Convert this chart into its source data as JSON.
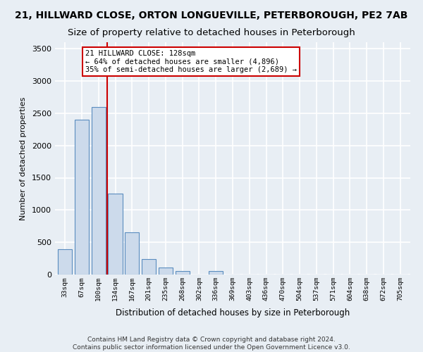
{
  "title1": "21, HILLWARD CLOSE, ORTON LONGUEVILLE, PETERBOROUGH, PE2 7AB",
  "title2": "Size of property relative to detached houses in Peterborough",
  "xlabel": "Distribution of detached houses by size in Peterborough",
  "ylabel": "Number of detached properties",
  "categories": [
    "33sqm",
    "67sqm",
    "100sqm",
    "134sqm",
    "167sqm",
    "201sqm",
    "235sqm",
    "268sqm",
    "302sqm",
    "336sqm",
    "369sqm",
    "403sqm",
    "436sqm",
    "470sqm",
    "504sqm",
    "537sqm",
    "571sqm",
    "604sqm",
    "638sqm",
    "672sqm",
    "705sqm"
  ],
  "values": [
    390,
    2400,
    2600,
    1250,
    650,
    240,
    105,
    60,
    0,
    55,
    0,
    0,
    0,
    0,
    0,
    0,
    0,
    0,
    0,
    0,
    0
  ],
  "bar_color": "#ccdaeb",
  "bar_edge_color": "#5a8dbf",
  "property_line_color": "#cc0000",
  "annotation_text": "21 HILLWARD CLOSE: 128sqm\n← 64% of detached houses are smaller (4,896)\n35% of semi-detached houses are larger (2,689) →",
  "annotation_box_color": "#ffffff",
  "annotation_box_edge": "#cc0000",
  "ylim": [
    0,
    3600
  ],
  "yticks": [
    0,
    500,
    1000,
    1500,
    2000,
    2500,
    3000,
    3500
  ],
  "footer": "Contains HM Land Registry data © Crown copyright and database right 2024.\nContains public sector information licensed under the Open Government Licence v3.0.",
  "bg_color": "#e8eef4",
  "plot_bg_color": "#e8eef4",
  "grid_color": "#ffffff",
  "title1_fontsize": 10,
  "title2_fontsize": 9.5
}
